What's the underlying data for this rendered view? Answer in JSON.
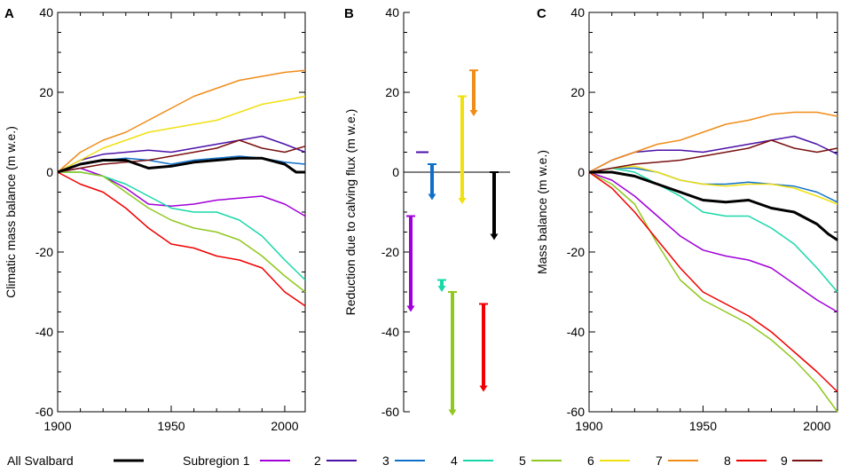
{
  "colors": {
    "all": "#000000",
    "1": "#a000d8",
    "2": "#4b10a8",
    "3": "#1070c8",
    "4": "#18d8a8",
    "5": "#90c820",
    "6": "#f0e010",
    "7": "#f08c18",
    "8": "#f00000",
    "9": "#7a1010"
  },
  "legend": {
    "all_label": "All Svalbard",
    "sub_prefix": "Subregion 1",
    "labels": [
      "2",
      "3",
      "4",
      "5",
      "6",
      "7",
      "8",
      "9"
    ]
  },
  "chart_data": [
    {
      "panel": "A",
      "type": "line",
      "ylabel": "Climatic mass balance (m w.e.)",
      "xlim": [
        1900,
        2009
      ],
      "ylim": [
        -60,
        40
      ],
      "xticks": [
        1900,
        1950,
        2000
      ],
      "yticks": [
        -60,
        -40,
        -20,
        0,
        20,
        40
      ],
      "series": [
        {
          "name": "All Svalbard",
          "key": "all",
          "x": [
            1900,
            1910,
            1920,
            1930,
            1940,
            1950,
            1960,
            1970,
            1980,
            1990,
            2000,
            2005,
            2009
          ],
          "y": [
            0,
            2,
            3,
            3,
            1,
            1.5,
            2.5,
            3,
            3.5,
            3.5,
            2,
            0,
            0
          ]
        },
        {
          "name": "Subregion 1",
          "key": "1",
          "x": [
            1900,
            1910,
            1920,
            1930,
            1940,
            1950,
            1960,
            1970,
            1980,
            1990,
            2000,
            2009
          ],
          "y": [
            0,
            1,
            -1,
            -4,
            -8,
            -8.5,
            -8,
            -7,
            -6.5,
            -6,
            -8,
            -11
          ]
        },
        {
          "name": "2",
          "key": "2",
          "x": [
            1900,
            1910,
            1920,
            1930,
            1940,
            1950,
            1960,
            1970,
            1980,
            1990,
            2000,
            2009
          ],
          "y": [
            0,
            3,
            4.5,
            5,
            5.5,
            5,
            6,
            7,
            8,
            9,
            7,
            5
          ]
        },
        {
          "name": "3",
          "key": "3",
          "x": [
            1900,
            1910,
            1920,
            1930,
            1940,
            1950,
            1960,
            1970,
            1980,
            1990,
            2000,
            2009
          ],
          "y": [
            0,
            2,
            3,
            3.5,
            3,
            2,
            3,
            3.5,
            4,
            3.5,
            2.5,
            2
          ]
        },
        {
          "name": "4",
          "key": "4",
          "x": [
            1900,
            1910,
            1920,
            1930,
            1940,
            1950,
            1960,
            1970,
            1980,
            1990,
            2000,
            2009
          ],
          "y": [
            0,
            0,
            -1,
            -3,
            -6,
            -9,
            -10,
            -10,
            -12,
            -16,
            -22,
            -27
          ]
        },
        {
          "name": "5",
          "key": "5",
          "x": [
            1900,
            1910,
            1920,
            1930,
            1940,
            1950,
            1960,
            1970,
            1980,
            1990,
            2000,
            2009
          ],
          "y": [
            0,
            0,
            -1,
            -5,
            -9,
            -12,
            -14,
            -15,
            -17,
            -21,
            -26,
            -30
          ]
        },
        {
          "name": "6",
          "key": "6",
          "x": [
            1900,
            1910,
            1920,
            1930,
            1940,
            1950,
            1960,
            1970,
            1980,
            1990,
            2000,
            2009
          ],
          "y": [
            0,
            3,
            6,
            8,
            10,
            11,
            12,
            13,
            15,
            17,
            18,
            19
          ]
        },
        {
          "name": "7",
          "key": "7",
          "x": [
            1900,
            1910,
            1920,
            1930,
            1940,
            1950,
            1960,
            1970,
            1980,
            1990,
            2000,
            2009
          ],
          "y": [
            0,
            5,
            8,
            10,
            13,
            16,
            19,
            21,
            23,
            24,
            25,
            25.5
          ]
        },
        {
          "name": "8",
          "key": "8",
          "x": [
            1900,
            1910,
            1920,
            1930,
            1940,
            1950,
            1960,
            1970,
            1980,
            1990,
            2000,
            2009
          ],
          "y": [
            0,
            -3,
            -5,
            -9,
            -14,
            -18,
            -19,
            -21,
            -22,
            -24,
            -30,
            -33.5
          ]
        },
        {
          "name": "9",
          "key": "9",
          "x": [
            1900,
            1910,
            1920,
            1930,
            1940,
            1950,
            1960,
            1970,
            1980,
            1990,
            2000,
            2009
          ],
          "y": [
            0,
            1,
            2,
            2.5,
            3,
            4,
            5,
            6,
            8,
            6,
            5,
            6.5
          ]
        }
      ]
    },
    {
      "panel": "B",
      "type": "bar",
      "ylabel": "Reduction due to calving flux (m w.e.)",
      "ylim": [
        -60,
        40
      ],
      "yticks": [
        -60,
        -40,
        -20,
        0,
        20,
        40
      ],
      "bars": [
        {
          "key": "1",
          "from": -11,
          "to": -35
        },
        {
          "key": "2",
          "from": 5,
          "to": 5
        },
        {
          "key": "3",
          "from": 2,
          "to": -7
        },
        {
          "key": "4",
          "from": -27,
          "to": -30
        },
        {
          "key": "5",
          "from": -30,
          "to": -61
        },
        {
          "key": "6",
          "from": 19,
          "to": -8
        },
        {
          "key": "7",
          "from": 25.5,
          "to": 14
        },
        {
          "key": "8",
          "from": -33,
          "to": -55
        },
        {
          "key": "all",
          "from": 0,
          "to": -17
        }
      ]
    },
    {
      "panel": "C",
      "type": "line",
      "ylabel": "Mass balance (m w.e.)",
      "xlim": [
        1900,
        2009
      ],
      "ylim": [
        -60,
        40
      ],
      "xticks": [
        1900,
        1950,
        2000
      ],
      "yticks": [
        -60,
        -40,
        -20,
        0,
        20,
        40
      ],
      "series": [
        {
          "name": "All Svalbard",
          "key": "all",
          "x": [
            1900,
            1910,
            1920,
            1930,
            1940,
            1950,
            1960,
            1970,
            1980,
            1990,
            2000,
            2005,
            2009
          ],
          "y": [
            0,
            0,
            -1,
            -3,
            -5,
            -7,
            -7.5,
            -7,
            -9,
            -10,
            -13,
            -15.5,
            -17
          ]
        },
        {
          "name": "Subregion 1",
          "key": "1",
          "x": [
            1900,
            1910,
            1920,
            1930,
            1940,
            1950,
            1960,
            1970,
            1980,
            1990,
            2000,
            2009
          ],
          "y": [
            0,
            -2,
            -6,
            -11,
            -16,
            -19.5,
            -21,
            -22,
            -24,
            -28,
            -32,
            -35
          ]
        },
        {
          "name": "2",
          "key": "2",
          "x": [
            1900,
            1910,
            1920,
            1930,
            1940,
            1950,
            1960,
            1970,
            1980,
            1990,
            2000,
            2009
          ],
          "y": [
            0,
            3,
            5,
            5.5,
            5.5,
            5,
            6,
            7,
            8,
            9,
            7,
            4.5
          ]
        },
        {
          "name": "3",
          "key": "3",
          "x": [
            1900,
            1910,
            1920,
            1930,
            1940,
            1950,
            1960,
            1970,
            1980,
            1990,
            2000,
            2009
          ],
          "y": [
            0,
            1,
            1,
            0,
            -2,
            -3,
            -3,
            -2.5,
            -3,
            -3.5,
            -5,
            -7.5
          ]
        },
        {
          "name": "4",
          "key": "4",
          "x": [
            1900,
            1910,
            1920,
            1930,
            1940,
            1950,
            1960,
            1970,
            1980,
            1990,
            2000,
            2009
          ],
          "y": [
            0,
            1,
            0,
            -3,
            -6,
            -10,
            -11,
            -11,
            -14,
            -18,
            -24,
            -30
          ]
        },
        {
          "name": "5",
          "key": "5",
          "x": [
            1900,
            1910,
            1920,
            1930,
            1940,
            1950,
            1960,
            1970,
            1980,
            1990,
            2000,
            2009
          ],
          "y": [
            0,
            -3,
            -8,
            -18,
            -27,
            -32,
            -35,
            -38,
            -42,
            -47,
            -53,
            -60
          ]
        },
        {
          "name": "6",
          "key": "6",
          "x": [
            1900,
            1910,
            1920,
            1930,
            1940,
            1950,
            1960,
            1970,
            1980,
            1990,
            2000,
            2009
          ],
          "y": [
            0,
            1,
            1.5,
            0,
            -2,
            -3,
            -3.5,
            -3,
            -3,
            -4,
            -6,
            -8
          ]
        },
        {
          "name": "7",
          "key": "7",
          "x": [
            1900,
            1910,
            1920,
            1930,
            1940,
            1950,
            1960,
            1970,
            1980,
            1990,
            2000,
            2009
          ],
          "y": [
            0,
            3,
            5,
            7,
            8,
            10,
            12,
            13,
            14.5,
            15,
            15,
            14
          ]
        },
        {
          "name": "8",
          "key": "8",
          "x": [
            1900,
            1910,
            1920,
            1930,
            1940,
            1950,
            1960,
            1970,
            1980,
            1990,
            2000,
            2009
          ],
          "y": [
            0,
            -4,
            -10,
            -17,
            -24,
            -30,
            -33,
            -36,
            -40,
            -45,
            -50,
            -55
          ]
        },
        {
          "name": "9",
          "key": "9",
          "x": [
            1900,
            1910,
            1920,
            1930,
            1940,
            1950,
            1960,
            1970,
            1980,
            1990,
            2000,
            2009
          ],
          "y": [
            0,
            1,
            2,
            2.5,
            3,
            4,
            5,
            6,
            8,
            6,
            5,
            6
          ]
        }
      ]
    }
  ]
}
